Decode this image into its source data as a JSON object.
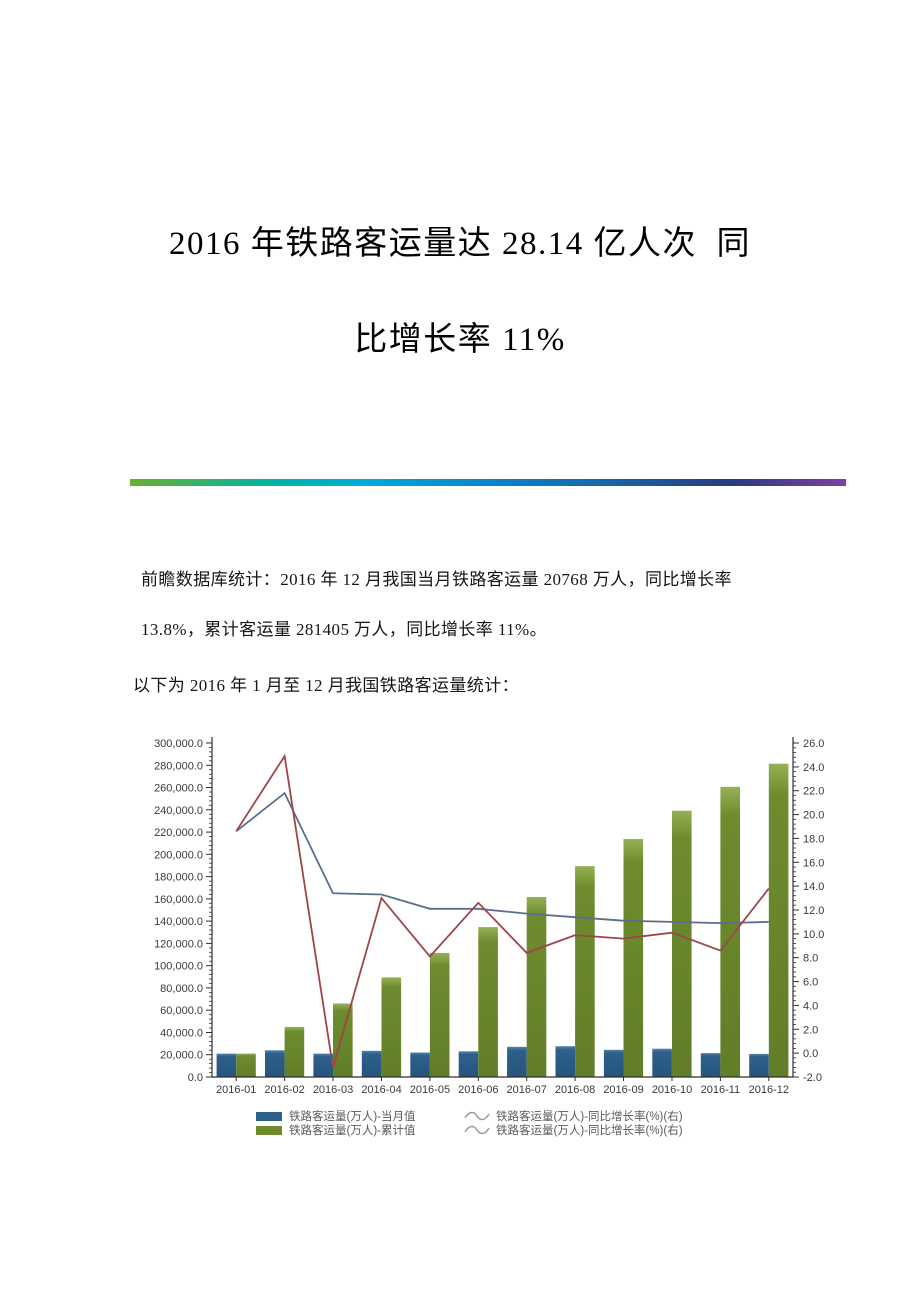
{
  "title": {
    "line1": "2016 年铁路客运量达 28.14 亿人次  同",
    "line2": "比增长率 11%"
  },
  "body": {
    "p1_line1": "前瞻数据库统计：2016 年 12 月我国当月铁路客运量 20768 万人，同比增长率",
    "p1_line2": "13.8%，累计客运量 281405 万人，同比增长率 11%。",
    "p2": "以下为 2016 年 1 月至 12 月我国铁路客运量统计："
  },
  "divider": {
    "colors": [
      "#68b02c",
      "#00b3a6",
      "#00abd8",
      "#0d84c8",
      "#1765a8",
      "#293a80",
      "#7f3fa5"
    ],
    "stops": [
      0,
      20,
      33,
      50,
      67,
      84,
      100
    ]
  },
  "chart_data": {
    "type": "bar",
    "subtype": "combo bar+line, dual axis",
    "categories": [
      "2016-01",
      "2016-02",
      "2016-03",
      "2016-04",
      "2016-05",
      "2016-06",
      "2016-07",
      "2016-08",
      "2016-09",
      "2016-10",
      "2016-11",
      "2016-12"
    ],
    "series": [
      {
        "name": "铁路客运量(万人)-当月值",
        "type": "bar",
        "axis": "left",
        "color": "#2e608c",
        "values": [
          21000,
          24000,
          21000,
          23500,
          22000,
          23100,
          27100,
          27700,
          24400,
          25400,
          21437,
          20768
        ]
      },
      {
        "name": "铁路客运量(万人)-累计值",
        "type": "bar",
        "axis": "left",
        "color": "#6e8c2e",
        "values": [
          21000,
          45000,
          66000,
          89500,
          111500,
          134600,
          161700,
          189400,
          213800,
          239200,
          260637,
          281405
        ]
      },
      {
        "name": "铁路客运量(万人)-同比增长率(%)(右)",
        "type": "line",
        "axis": "right",
        "color": "#9e4548",
        "values": [
          18.6,
          24.9,
          -1.2,
          13.0,
          8.1,
          12.6,
          8.4,
          9.9,
          9.6,
          10.1,
          8.6,
          13.8
        ]
      },
      {
        "name": "铁路客运量(万人)-同比增长率(%)(右)",
        "type": "line",
        "axis": "right",
        "color": "#5c6d8e",
        "values": [
          18.6,
          21.8,
          13.4,
          13.3,
          12.1,
          12.1,
          11.7,
          11.4,
          11.1,
          11.0,
          10.9,
          11.0
        ]
      }
    ],
    "left_axis": {
      "min": 0,
      "max": 300000,
      "step": 20000,
      "minor_step": 4000
    },
    "right_axis": {
      "min": -2.0,
      "max": 26.0,
      "step": 2.0,
      "minor_step": 0.4
    },
    "grid": "off",
    "legend": {
      "position": "bottom",
      "line_sample_color": "#9b9b9b"
    },
    "axis_color": "#2f2f2f",
    "tick_label_color": "#3a3a3a"
  }
}
